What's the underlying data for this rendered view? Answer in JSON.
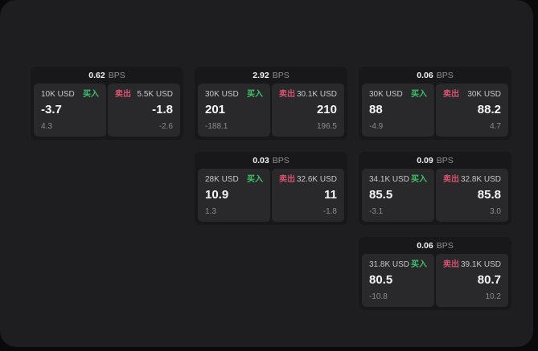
{
  "labels": {
    "buy": "买入",
    "sell": "卖出",
    "bps_unit": "BPS"
  },
  "colors": {
    "buy_green": "#3dc46a",
    "sell_red": "#d6536d",
    "panel_bg": "#1e1e20",
    "card_bg": "#18181a",
    "subpanel_bg": "#29292c"
  },
  "cards": [
    {
      "row": 1,
      "col": 1,
      "bps": "0.62",
      "buy": {
        "amount": "10K USD",
        "price": "-3.7",
        "delta": "4.3"
      },
      "sell": {
        "amount": "5.5K USD",
        "price": "-1.8",
        "delta": "-2.6"
      }
    },
    {
      "row": 1,
      "col": 2,
      "bps": "2.92",
      "buy": {
        "amount": "30K USD",
        "price": "201",
        "delta": "-188.1"
      },
      "sell": {
        "amount": "30.1K USD",
        "price": "210",
        "delta": "196.5"
      }
    },
    {
      "row": 1,
      "col": 3,
      "bps": "0.06",
      "buy": {
        "amount": "30K USD",
        "price": "88",
        "delta": "-4.9"
      },
      "sell": {
        "amount": "30K USD",
        "price": "88.2",
        "delta": "4.7"
      }
    },
    {
      "row": 2,
      "col": 2,
      "bps": "0.03",
      "buy": {
        "amount": "28K USD",
        "price": "10.9",
        "delta": "1.3"
      },
      "sell": {
        "amount": "32.6K USD",
        "price": "11",
        "delta": "-1.8"
      }
    },
    {
      "row": 2,
      "col": 3,
      "bps": "0.09",
      "buy": {
        "amount": "34.1K USD",
        "price": "85.5",
        "delta": "-3.1"
      },
      "sell": {
        "amount": "32.8K USD",
        "price": "85.8",
        "delta": "3.0"
      }
    },
    {
      "row": 3,
      "col": 3,
      "bps": "0.06",
      "buy": {
        "amount": "31.8K USD",
        "price": "80.5",
        "delta": "-10.8"
      },
      "sell": {
        "amount": "39.1K USD",
        "price": "80.7",
        "delta": "10.2"
      }
    }
  ]
}
